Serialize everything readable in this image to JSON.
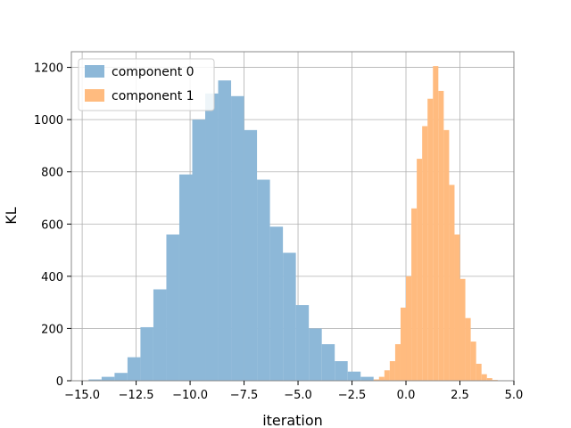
{
  "chart_data": {
    "type": "histogram",
    "xlabel": "iteration",
    "ylabel": "KL",
    "xlim": [
      -15.5,
      5.0
    ],
    "ylim": [
      0,
      1260
    ],
    "xticks": [
      -15.0,
      -12.5,
      -10.0,
      -7.5,
      -5.0,
      -2.5,
      0.0,
      2.5,
      5.0
    ],
    "xtick_labels": [
      "−15.0",
      "−12.5",
      "−10.0",
      "−7.5",
      "−5.0",
      "−2.5",
      "0.0",
      "2.5",
      "5.0"
    ],
    "yticks": [
      0,
      200,
      400,
      600,
      800,
      1000,
      1200
    ],
    "ytick_labels": [
      "0",
      "200",
      "400",
      "600",
      "800",
      "1000",
      "1200"
    ],
    "grid": true,
    "legend_position": "top-left",
    "series": [
      {
        "name": "component 0",
        "color": "#8db8d8",
        "bins": [
          {
            "x0": -14.7,
            "x1": -14.1,
            "y": 5
          },
          {
            "x0": -14.1,
            "x1": -13.5,
            "y": 15
          },
          {
            "x0": -13.5,
            "x1": -12.9,
            "y": 30
          },
          {
            "x0": -12.9,
            "x1": -12.3,
            "y": 90
          },
          {
            "x0": -12.3,
            "x1": -11.7,
            "y": 205
          },
          {
            "x0": -11.7,
            "x1": -11.1,
            "y": 350
          },
          {
            "x0": -11.1,
            "x1": -10.5,
            "y": 560
          },
          {
            "x0": -10.5,
            "x1": -9.9,
            "y": 790
          },
          {
            "x0": -9.9,
            "x1": -9.3,
            "y": 1000
          },
          {
            "x0": -9.3,
            "x1": -8.7,
            "y": 1100
          },
          {
            "x0": -8.7,
            "x1": -8.1,
            "y": 1150
          },
          {
            "x0": -8.1,
            "x1": -7.5,
            "y": 1090
          },
          {
            "x0": -7.5,
            "x1": -6.9,
            "y": 960
          },
          {
            "x0": -6.9,
            "x1": -6.3,
            "y": 770
          },
          {
            "x0": -6.3,
            "x1": -5.7,
            "y": 590
          },
          {
            "x0": -5.7,
            "x1": -5.1,
            "y": 490
          },
          {
            "x0": -5.1,
            "x1": -4.5,
            "y": 290
          },
          {
            "x0": -4.5,
            "x1": -3.9,
            "y": 200
          },
          {
            "x0": -3.9,
            "x1": -3.3,
            "y": 140
          },
          {
            "x0": -3.3,
            "x1": -2.7,
            "y": 75
          },
          {
            "x0": -2.7,
            "x1": -2.1,
            "y": 35
          },
          {
            "x0": -2.1,
            "x1": -1.5,
            "y": 15
          },
          {
            "x0": -1.5,
            "x1": -0.9,
            "y": 5
          }
        ]
      },
      {
        "name": "component 1",
        "color": "#ffbb7f",
        "bins": [
          {
            "x0": -1.5,
            "x1": -1.25,
            "y": 5
          },
          {
            "x0": -1.25,
            "x1": -1.0,
            "y": 15
          },
          {
            "x0": -1.0,
            "x1": -0.75,
            "y": 40
          },
          {
            "x0": -0.75,
            "x1": -0.5,
            "y": 75
          },
          {
            "x0": -0.5,
            "x1": -0.25,
            "y": 140
          },
          {
            "x0": -0.25,
            "x1": 0.0,
            "y": 280
          },
          {
            "x0": 0.0,
            "x1": 0.25,
            "y": 400
          },
          {
            "x0": 0.25,
            "x1": 0.5,
            "y": 660
          },
          {
            "x0": 0.5,
            "x1": 0.75,
            "y": 850
          },
          {
            "x0": 0.75,
            "x1": 1.0,
            "y": 975
          },
          {
            "x0": 1.0,
            "x1": 1.25,
            "y": 1080
          },
          {
            "x0": 1.25,
            "x1": 1.5,
            "y": 1205
          },
          {
            "x0": 1.5,
            "x1": 1.75,
            "y": 1110
          },
          {
            "x0": 1.75,
            "x1": 2.0,
            "y": 960
          },
          {
            "x0": 2.0,
            "x1": 2.25,
            "y": 750
          },
          {
            "x0": 2.25,
            "x1": 2.5,
            "y": 560
          },
          {
            "x0": 2.5,
            "x1": 2.75,
            "y": 390
          },
          {
            "x0": 2.75,
            "x1": 3.0,
            "y": 240
          },
          {
            "x0": 3.0,
            "x1": 3.25,
            "y": 150
          },
          {
            "x0": 3.25,
            "x1": 3.5,
            "y": 65
          },
          {
            "x0": 3.5,
            "x1": 3.75,
            "y": 25
          },
          {
            "x0": 3.75,
            "x1": 4.0,
            "y": 10
          },
          {
            "x0": 4.0,
            "x1": 4.25,
            "y": 3
          }
        ]
      }
    ]
  }
}
